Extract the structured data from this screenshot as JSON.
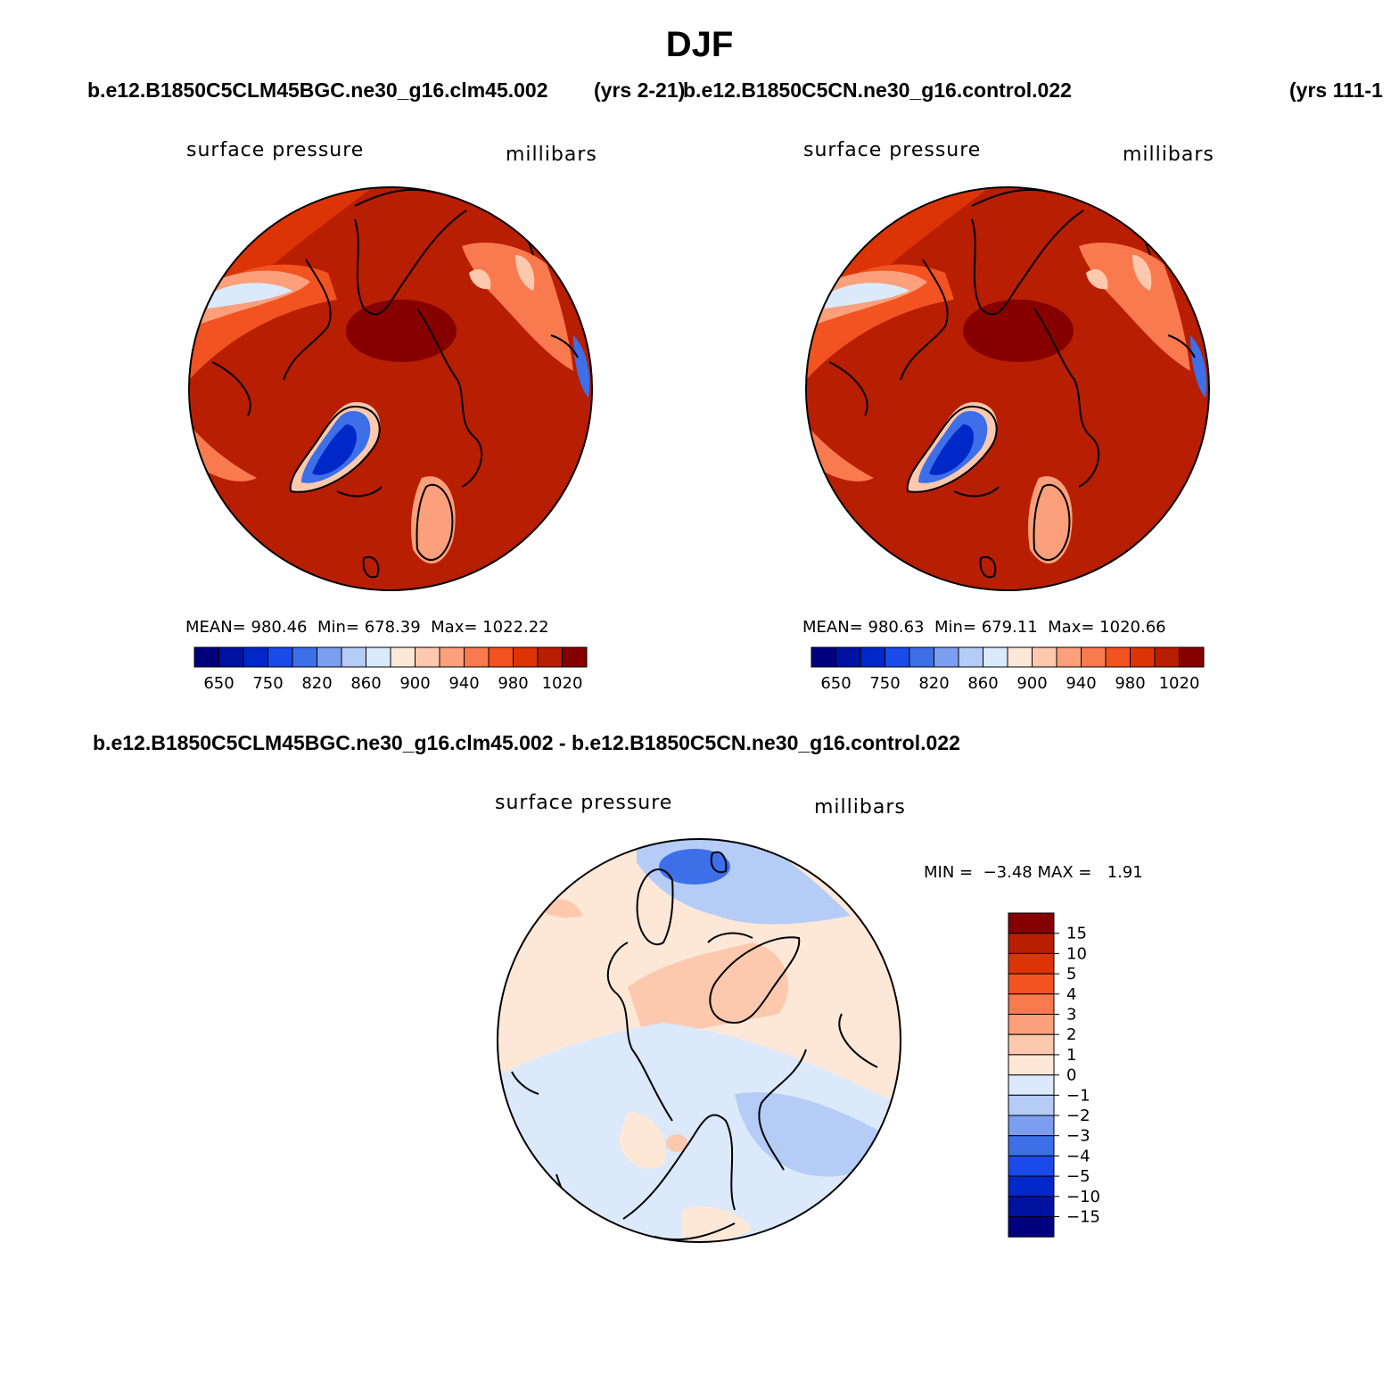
{
  "page": {
    "title": "DJF",
    "case1_title": "b.e12.B1850C5CLM45BGC.ne30_g16.clm45.002",
    "case1_years": "(yrs 2-21)",
    "case2_title": "b.e12.B1850C5CN.ne30_g16.control.022",
    "case2_years": "(yrs 111-1",
    "diff_title": "b.e12.B1850C5CLM45BGC.ne30_g16.clm45.002 - b.e12.B1850C5CN.ne30_g16.control.022"
  },
  "panels": [
    {
      "variable": "surface pressure",
      "units": "millibars",
      "stats": {
        "mean_label": "MEAN=",
        "mean": "980.46",
        "min_label": "Min=",
        "min": "678.39",
        "max_label": "Max=",
        "max": "1022.22"
      }
    },
    {
      "variable": "surface pressure",
      "units": "millibars",
      "stats": {
        "mean_label": "MEAN=",
        "mean": "980.63",
        "min_label": "Min=",
        "min": "679.11",
        "max_label": "Max=",
        "max": "1020.66"
      }
    }
  ],
  "colorbar_abs": {
    "colors": [
      "#00007f",
      "#0012a0",
      "#0028c8",
      "#1a4be8",
      "#3d6fe8",
      "#7b9ef0",
      "#b5ccf7",
      "#dbe9fb",
      "#fde8d8",
      "#fcc9ae",
      "#fba07a",
      "#f97a4e",
      "#f25321",
      "#dc3406",
      "#b81e02",
      "#870000"
    ],
    "labels": [
      "650",
      "750",
      "820",
      "860",
      "900",
      "940",
      "980",
      "1020"
    ]
  },
  "diff_panel": {
    "variable": "surface pressure",
    "units": "millibars",
    "stats": {
      "min_label": "MIN =",
      "min": "−3.48",
      "max_label": "MAX =",
      "max": "1.91"
    }
  },
  "colorbar_diff": {
    "colors": [
      "#870000",
      "#b81e02",
      "#dc3406",
      "#f25321",
      "#f97a4e",
      "#fba07a",
      "#fcc9ae",
      "#fde8d8",
      "#dbe9fb",
      "#b5ccf7",
      "#7b9ef0",
      "#3d6fe8",
      "#1a4be8",
      "#0028c8",
      "#0012a0",
      "#00007f"
    ],
    "labels": [
      "15",
      "10",
      "5",
      "4",
      "3",
      "2",
      "1",
      "0",
      "−1",
      "−2",
      "−3",
      "−4",
      "−5",
      "−10",
      "−15"
    ]
  }
}
